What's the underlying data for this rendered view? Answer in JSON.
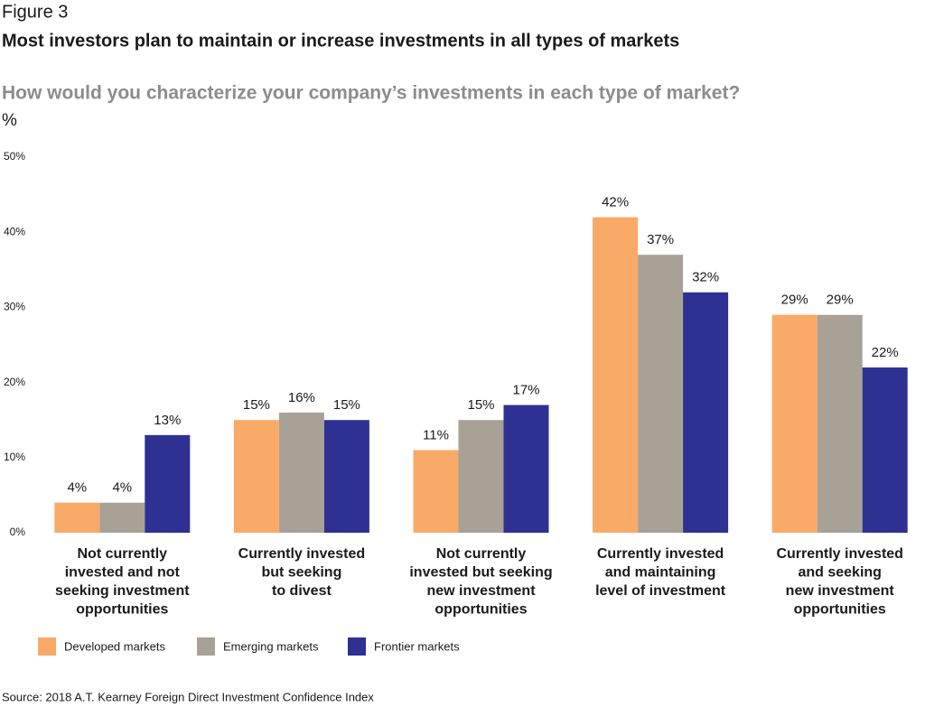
{
  "chart_data": {
    "type": "bar",
    "figure_label": "Figure 3",
    "title": "Most investors plan to maintain or increase investments in all types of markets",
    "subtitle": "How would you characterize your company’s investments in each type of market?",
    "y_unit": "%",
    "source": "Source: 2018 A.T. Kearney Foreign Direct Investment Confidence Index",
    "categories": [
      "Not currently\ninvested and not\nseeking investment\nopportunities",
      "Currently invested\nbut seeking\nto divest",
      "Not currently\ninvested but seeking\nnew investment\nopportunities",
      "Currently invested\nand maintaining\nlevel of investment",
      "Currently invested\nand seeking\nnew investment\nopportunities"
    ],
    "series": [
      {
        "name": "Developed markets",
        "color": "#f9aa66",
        "values": [
          4,
          15,
          11,
          42,
          29
        ],
        "value_labels": [
          "4%",
          "15%",
          "11%",
          "42%",
          "29%"
        ]
      },
      {
        "name": "Emerging markets",
        "color": "#a8a196",
        "values": [
          4,
          16,
          15,
          37,
          29
        ],
        "value_labels": [
          "4%",
          "16%",
          "15%",
          "37%",
          "29%"
        ]
      },
      {
        "name": "Frontier markets",
        "color": "#2e3192",
        "values": [
          13,
          15,
          17,
          32,
          22
        ],
        "value_labels": [
          "13%",
          "15%",
          "17%",
          "32%",
          "22%"
        ]
      }
    ],
    "ylim": [
      0,
      50
    ],
    "yticks": [
      {
        "value": 0,
        "label": "0%"
      },
      {
        "value": 10,
        "label": "10%"
      },
      {
        "value": 20,
        "label": "20%"
      },
      {
        "value": 30,
        "label": "30%"
      },
      {
        "value": 40,
        "label": "40%"
      },
      {
        "value": 50,
        "label": "50%"
      }
    ],
    "grid": false,
    "legend": "bottom-left"
  }
}
